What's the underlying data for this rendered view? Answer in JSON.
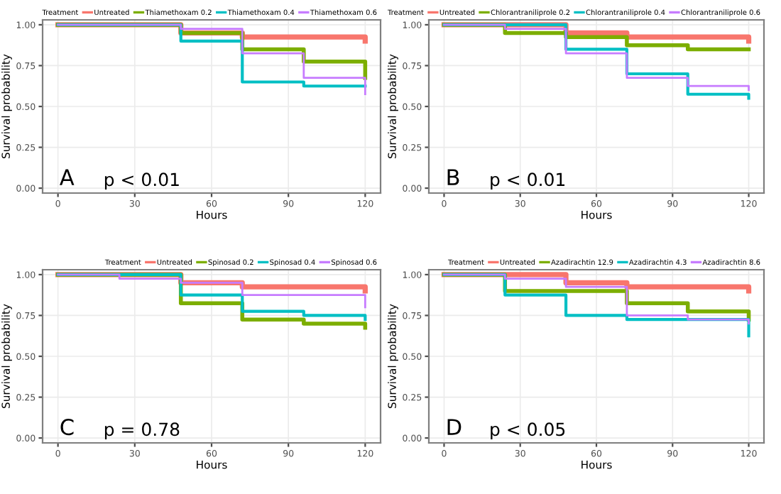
{
  "chart_data": [
    {
      "type": "step",
      "xlabel": "Hours",
      "ylabel": "Survival probability",
      "legend_title": "Treatment",
      "legend": "top",
      "grid": true,
      "annotations": [
        "A",
        "p < 0.01"
      ],
      "x": [
        0,
        24,
        48,
        72,
        96,
        120
      ],
      "xlim": [
        -6,
        126
      ],
      "xticks": [
        0,
        30,
        60,
        90,
        120
      ],
      "ylim": [
        -0.03,
        1.03
      ],
      "yticks": [
        {
          "value": 0,
          "label": "0.00"
        },
        {
          "value": 0.25,
          "label": "0.25"
        },
        {
          "value": 0.5,
          "label": "0.50"
        },
        {
          "value": 0.75,
          "label": "0.75"
        },
        {
          "value": 1,
          "label": "1.00"
        }
      ],
      "series": [
        {
          "name": "Untreated",
          "color": "#f8766d",
          "values": [
            1,
            1,
            0.95,
            0.925,
            0.925,
            0.9
          ]
        },
        {
          "name": "Thiamethoxam 0.2",
          "color": "#7cae00",
          "values": [
            1,
            1,
            0.95,
            0.85,
            0.775,
            0.675
          ]
        },
        {
          "name": "Thiamethoxam 0.4",
          "color": "#00bfc4",
          "values": [
            1,
            1,
            0.9,
            0.65,
            0.625,
            0.625
          ]
        },
        {
          "name": "Thiamethoxam 0.6",
          "color": "#c77cff",
          "values": [
            1,
            1,
            0.975,
            0.825,
            0.675,
            0.575
          ]
        }
      ]
    },
    {
      "type": "step",
      "xlabel": "Hours",
      "ylabel": "Survival probability",
      "legend_title": "Treatment",
      "legend": "top",
      "grid": true,
      "annotations": [
        "B",
        "p < 0.01"
      ],
      "x": [
        0,
        24,
        48,
        72,
        96,
        120
      ],
      "xlim": [
        -6,
        126
      ],
      "xticks": [
        0,
        30,
        60,
        90,
        120
      ],
      "ylim": [
        -0.03,
        1.03
      ],
      "yticks": [
        {
          "value": 0,
          "label": "0.00"
        },
        {
          "value": 0.25,
          "label": "0.25"
        },
        {
          "value": 0.5,
          "label": "0.50"
        },
        {
          "value": 0.75,
          "label": "0.75"
        },
        {
          "value": 1,
          "label": "1.00"
        }
      ],
      "series": [
        {
          "name": "Untreated",
          "color": "#f8766d",
          "values": [
            1,
            1,
            0.95,
            0.925,
            0.925,
            0.9
          ]
        },
        {
          "name": "Chlorantraniliprole 0.2",
          "color": "#7cae00",
          "values": [
            1,
            0.95,
            0.925,
            0.875,
            0.85,
            0.85
          ]
        },
        {
          "name": "Chlorantraniliprole 0.4",
          "color": "#00bfc4",
          "values": [
            1,
            1,
            0.85,
            0.7,
            0.575,
            0.55
          ]
        },
        {
          "name": "Chlorantraniliprole 0.6",
          "color": "#c77cff",
          "values": [
            1,
            0.975,
            0.825,
            0.675,
            0.625,
            0.6
          ]
        }
      ]
    },
    {
      "type": "step",
      "xlabel": "Hours",
      "ylabel": "Survival probability",
      "legend_title": "Treatment",
      "legend": "top",
      "grid": true,
      "annotations": [
        "C",
        "p = 0.78"
      ],
      "x": [
        0,
        24,
        48,
        72,
        96,
        120
      ],
      "xlim": [
        -6,
        126
      ],
      "xticks": [
        0,
        30,
        60,
        90,
        120
      ],
      "ylim": [
        -0.03,
        1.03
      ],
      "yticks": [
        {
          "value": 0,
          "label": "0.00"
        },
        {
          "value": 0.25,
          "label": "0.25"
        },
        {
          "value": 0.5,
          "label": "0.50"
        },
        {
          "value": 0.75,
          "label": "0.75"
        },
        {
          "value": 1,
          "label": "1.00"
        }
      ],
      "series": [
        {
          "name": "Untreated",
          "color": "#f8766d",
          "values": [
            1,
            1,
            0.95,
            0.925,
            0.925,
            0.9
          ]
        },
        {
          "name": "Spinosad 0.2",
          "color": "#7cae00",
          "values": [
            1,
            1,
            0.825,
            0.725,
            0.7,
            0.675
          ]
        },
        {
          "name": "Spinosad 0.4",
          "color": "#00bfc4",
          "values": [
            1,
            1,
            0.875,
            0.775,
            0.75,
            0.725
          ]
        },
        {
          "name": "Spinosad 0.6",
          "color": "#c77cff",
          "values": [
            1,
            0.975,
            0.95,
            0.875,
            0.875,
            0.8
          ]
        }
      ]
    },
    {
      "type": "step",
      "xlabel": "Hours",
      "ylabel": "Survival probability",
      "legend_title": "Treatment",
      "legend": "top",
      "grid": true,
      "annotations": [
        "D",
        "p < 0.05"
      ],
      "x": [
        0,
        24,
        48,
        72,
        96,
        120
      ],
      "xlim": [
        -6,
        126
      ],
      "xticks": [
        0,
        30,
        60,
        90,
        120
      ],
      "ylim": [
        -0.03,
        1.03
      ],
      "yticks": [
        {
          "value": 0,
          "label": "0.00"
        },
        {
          "value": 0.25,
          "label": "0.25"
        },
        {
          "value": 0.5,
          "label": "0.50"
        },
        {
          "value": 0.75,
          "label": "0.75"
        },
        {
          "value": 1,
          "label": "1.00"
        }
      ],
      "series": [
        {
          "name": "Untreated",
          "color": "#f8766d",
          "values": [
            1,
            1,
            0.95,
            0.925,
            0.925,
            0.9
          ]
        },
        {
          "name": "Azadirachtin 12.9",
          "color": "#7cae00",
          "values": [
            1,
            0.9,
            0.9,
            0.825,
            0.775,
            0.725
          ]
        },
        {
          "name": "Azadirachtin 4.3",
          "color": "#00bfc4",
          "values": [
            1,
            0.875,
            0.75,
            0.725,
            0.725,
            0.625
          ]
        },
        {
          "name": "Azadirachtin 8.6",
          "color": "#c77cff",
          "values": [
            1,
            0.975,
            0.925,
            0.75,
            0.725,
            0.7
          ]
        }
      ]
    }
  ]
}
